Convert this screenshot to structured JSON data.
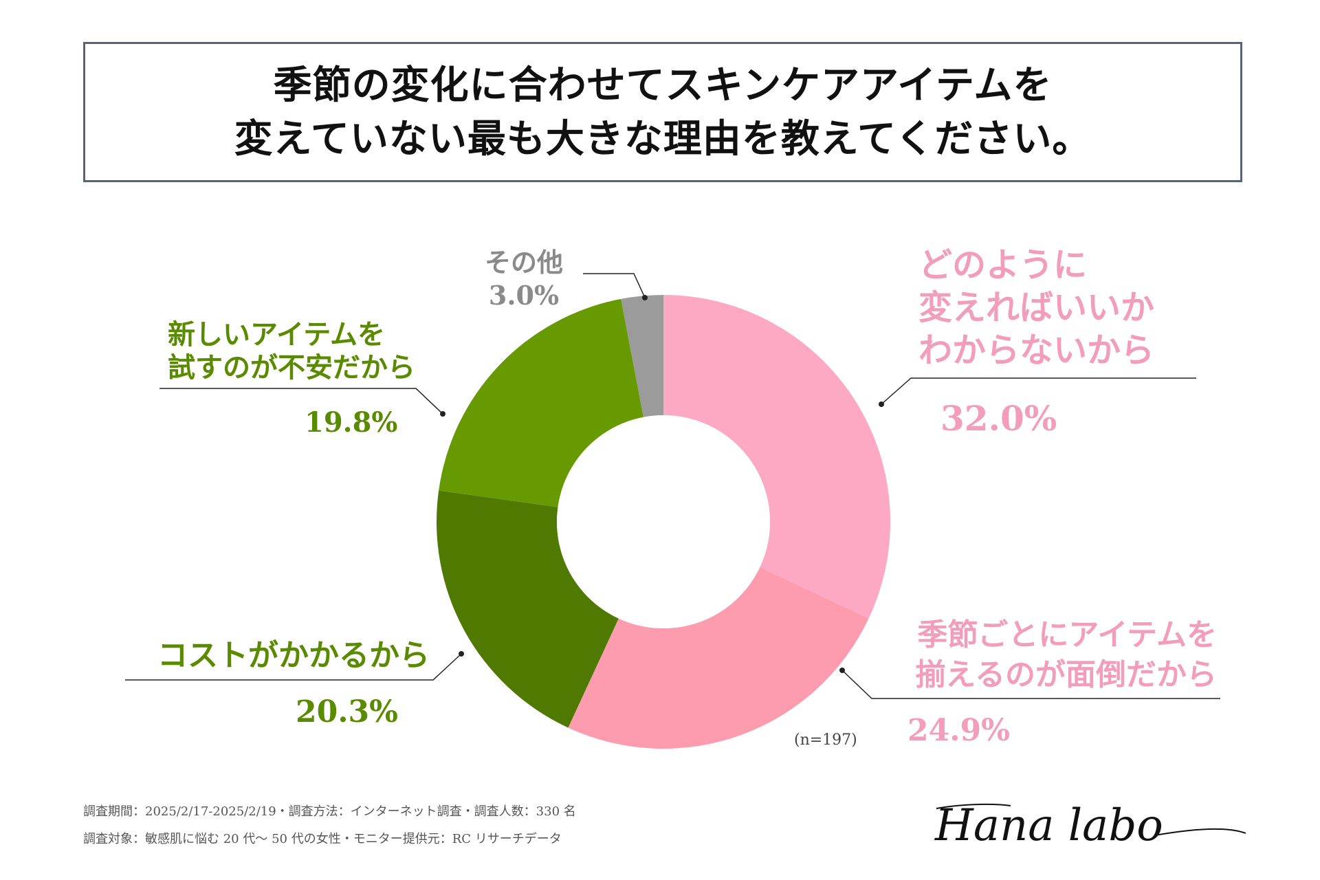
{
  "header": {
    "title_line1": "季節の変化に合わせてスキンケアアイテムを",
    "title_line2": "変えていない最も大きな理由を教えてください。"
  },
  "chart_data": {
    "type": "pie",
    "variant": "donut",
    "sample_size": "(n=197)",
    "slices": [
      {
        "label": "どのように変えればいいかわからないから",
        "label_lines": [
          "どのように",
          "変えればいいか",
          "わからないから"
        ],
        "value": 32.0,
        "value_text": "32.0%",
        "color": "#fda9c4",
        "text_color": "#f39dbd"
      },
      {
        "label": "季節ごとにアイテムを揃えるのが面倒だから",
        "label_lines": [
          "季節ごとにアイテムを",
          "揃えるのが面倒だから"
        ],
        "value": 24.9,
        "value_text": "24.9%",
        "color": "#fd9cae",
        "text_color": "#f39dbd"
      },
      {
        "label": "コストがかかるから",
        "label_lines": [
          "コストがかかるから"
        ],
        "value": 20.3,
        "value_text": "20.3%",
        "color": "#4f7900",
        "text_color": "#5a8a00"
      },
      {
        "label": "新しいアイテムを試すのが不安だから",
        "label_lines": [
          "新しいアイテムを",
          "試すのが不安だから"
        ],
        "value": 19.8,
        "value_text": "19.8%",
        "color": "#669a00",
        "text_color": "#5a8a00"
      },
      {
        "label": "その他",
        "label_lines": [
          "その他"
        ],
        "value": 3.0,
        "value_text": "3.0%",
        "color": "#9b9b9b",
        "text_color": "#8a8a8a"
      }
    ]
  },
  "footer": {
    "line1": "調査期間：2025/2/17-2025/2/19・調査方法：インターネット調査・調査人数：330 名",
    "line2": "調査対象：敏感肌に悩む 20 代〜 50 代の女性・モニター提供元：RC リサーチデータ"
  },
  "brand": {
    "logo_text": "Hana labo"
  }
}
